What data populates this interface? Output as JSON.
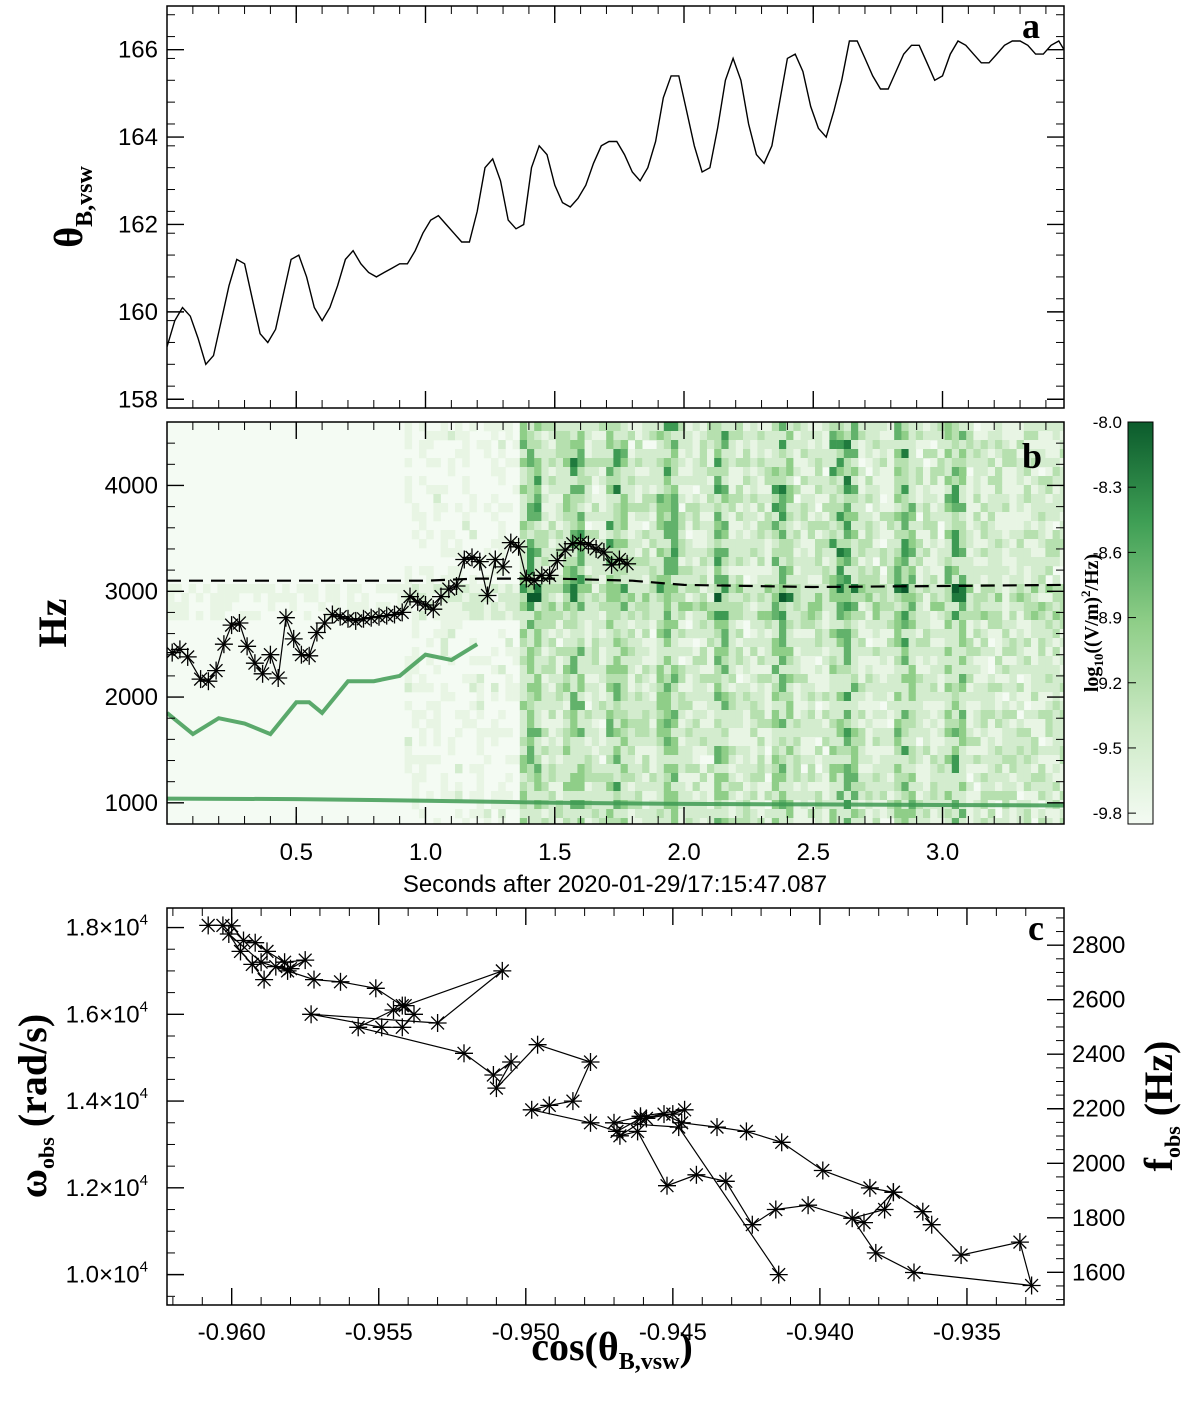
{
  "chart_data": [
    {
      "id": "a",
      "type": "line",
      "panel_label": "a",
      "ylabel": "θ",
      "ylabel_sub": "B,vsw",
      "xlim": [
        0.0,
        3.47
      ],
      "ylim": [
        157.8,
        167.0
      ],
      "yticks": [
        158,
        160,
        162,
        164,
        166
      ],
      "ytick_labels": [
        "158",
        "160",
        "162",
        "164",
        "166"
      ],
      "series": [
        {
          "name": "theta_B_vsw",
          "x": [
            0.0,
            0.03,
            0.06,
            0.09,
            0.12,
            0.15,
            0.18,
            0.21,
            0.24,
            0.27,
            0.3,
            0.33,
            0.36,
            0.39,
            0.42,
            0.45,
            0.48,
            0.51,
            0.54,
            0.57,
            0.6,
            0.63,
            0.66,
            0.69,
            0.72,
            0.75,
            0.78,
            0.81,
            0.84,
            0.87,
            0.9,
            0.93,
            0.96,
            0.99,
            1.02,
            1.05,
            1.08,
            1.11,
            1.14,
            1.17,
            1.2,
            1.23,
            1.26,
            1.29,
            1.32,
            1.35,
            1.38,
            1.41,
            1.44,
            1.47,
            1.5,
            1.53,
            1.56,
            1.59,
            1.62,
            1.65,
            1.68,
            1.71,
            1.74,
            1.77,
            1.8,
            1.83,
            1.86,
            1.89,
            1.92,
            1.95,
            1.98,
            2.01,
            2.04,
            2.07,
            2.1,
            2.13,
            2.16,
            2.19,
            2.22,
            2.25,
            2.28,
            2.31,
            2.34,
            2.37,
            2.4,
            2.43,
            2.46,
            2.49,
            2.52,
            2.55,
            2.58,
            2.61,
            2.64,
            2.67,
            2.7,
            2.73,
            2.76,
            2.79,
            2.82,
            2.85,
            2.88,
            2.91,
            2.94,
            2.97,
            3.0,
            3.03,
            3.06,
            3.09,
            3.12,
            3.15,
            3.18,
            3.21,
            3.24,
            3.27,
            3.3,
            3.33,
            3.36,
            3.39,
            3.42,
            3.45,
            3.47
          ],
          "values": [
            159.2,
            159.8,
            160.1,
            159.9,
            159.4,
            158.8,
            159.0,
            159.8,
            160.6,
            161.2,
            161.1,
            160.3,
            159.5,
            159.3,
            159.6,
            160.4,
            161.2,
            161.3,
            160.8,
            160.1,
            159.8,
            160.1,
            160.6,
            161.2,
            161.4,
            161.1,
            160.9,
            160.8,
            160.9,
            161.0,
            161.1,
            161.1,
            161.4,
            161.8,
            162.1,
            162.2,
            162.0,
            161.8,
            161.6,
            161.6,
            162.3,
            163.3,
            163.5,
            163.0,
            162.1,
            161.9,
            162.0,
            163.3,
            163.8,
            163.6,
            162.9,
            162.5,
            162.4,
            162.6,
            162.9,
            163.4,
            163.8,
            163.9,
            163.9,
            163.6,
            163.2,
            163.0,
            163.3,
            163.9,
            164.9,
            165.4,
            165.4,
            164.6,
            163.8,
            163.2,
            163.3,
            164.2,
            165.3,
            165.8,
            165.3,
            164.3,
            163.6,
            163.4,
            163.8,
            164.8,
            165.8,
            165.9,
            165.5,
            164.7,
            164.2,
            164.0,
            164.6,
            165.3,
            166.2,
            166.2,
            165.8,
            165.4,
            165.1,
            165.1,
            165.5,
            165.9,
            166.1,
            166.1,
            165.7,
            165.3,
            165.4,
            165.9,
            166.2,
            166.1,
            165.9,
            165.7,
            165.7,
            165.9,
            166.1,
            166.2,
            166.2,
            166.1,
            165.9,
            165.9,
            166.1,
            166.2,
            166.0
          ]
        }
      ]
    },
    {
      "id": "b",
      "type": "heatmap",
      "panel_label": "b",
      "ylabel": "Hz",
      "xlabel": "Seconds after 2020-01-29/17:15:47.087",
      "xlim": [
        0.0,
        3.47
      ],
      "ylim": [
        800,
        4600
      ],
      "xticks": [
        0.5,
        1.0,
        1.5,
        2.0,
        2.5,
        3.0
      ],
      "xtick_labels": [
        "0.5",
        "1.0",
        "1.5",
        "2.0",
        "2.5",
        "3.0"
      ],
      "yticks": [
        1000,
        2000,
        3000,
        4000
      ],
      "ytick_labels": [
        "1000",
        "2000",
        "3000",
        "4000"
      ],
      "colorbar": {
        "label": "log10((V/m)²/Hz)",
        "label_base": "log",
        "label_sub": "10",
        "label_rest": "((V/m)",
        "label_sup": "2",
        "label_end": "/Hz)",
        "range": [
          -9.85,
          -8.0
        ],
        "ticks": [
          -8.0,
          -8.3,
          -8.6,
          -8.9,
          -9.2,
          -9.5,
          -9.8
        ],
        "tick_labels": [
          "-8.0",
          "-8.3",
          "-8.6",
          "-8.9",
          "-9.2",
          "-9.5",
          "-9.8"
        ],
        "color_low": "#f4fbf3",
        "color_high": "#0b5b2c"
      },
      "bright_columns_s": [
        1.4,
        1.57,
        1.72,
        1.93,
        2.13,
        2.36,
        2.58,
        2.62,
        2.84,
        3.04
      ],
      "emission_bands": [
        {
          "name": "lower band",
          "x": [
            0.0,
            0.5,
            1.0,
            1.5,
            2.0,
            2.5,
            3.0,
            3.47
          ],
          "values": [
            1040,
            1035,
            1020,
            1000,
            990,
            985,
            980,
            975
          ]
        },
        {
          "name": "rising band",
          "x": [
            0.0,
            0.1,
            0.2,
            0.3,
            0.4,
            0.5,
            0.55,
            0.6,
            0.7,
            0.8,
            0.9,
            1.0,
            1.1,
            1.2
          ],
          "values": [
            1850,
            1650,
            1800,
            1750,
            1650,
            1950,
            1950,
            1850,
            2150,
            2150,
            2200,
            2400,
            2350,
            2500
          ]
        }
      ],
      "dashed_line": {
        "name": "reference frequency",
        "x": [
          0.0,
          0.5,
          1.0,
          1.2,
          1.5,
          1.8,
          2.0,
          2.5,
          3.0,
          3.47
        ],
        "values": [
          3100,
          3100,
          3100,
          3120,
          3120,
          3100,
          3060,
          3040,
          3050,
          3060
        ]
      },
      "markers": {
        "name": "peak frequency",
        "x": [
          0.02,
          0.05,
          0.08,
          0.13,
          0.16,
          0.19,
          0.22,
          0.25,
          0.28,
          0.31,
          0.34,
          0.37,
          0.4,
          0.43,
          0.46,
          0.49,
          0.52,
          0.55,
          0.58,
          0.61,
          0.64,
          0.67,
          0.7,
          0.73,
          0.76,
          0.79,
          0.82,
          0.85,
          0.88,
          0.91,
          0.94,
          0.97,
          1.0,
          1.03,
          1.06,
          1.09,
          1.12,
          1.15,
          1.18,
          1.21,
          1.24,
          1.27,
          1.3,
          1.33,
          1.36,
          1.39,
          1.42,
          1.45,
          1.48,
          1.51,
          1.54,
          1.57,
          1.6,
          1.63,
          1.66,
          1.69,
          1.72,
          1.75,
          1.78
        ],
        "values": [
          2420,
          2450,
          2380,
          2170,
          2150,
          2250,
          2500,
          2680,
          2700,
          2480,
          2320,
          2220,
          2400,
          2180,
          2750,
          2550,
          2400,
          2390,
          2610,
          2700,
          2780,
          2760,
          2740,
          2720,
          2740,
          2750,
          2760,
          2770,
          2780,
          2800,
          2950,
          2900,
          2870,
          2830,
          2950,
          3020,
          3050,
          3300,
          3320,
          3280,
          2960,
          3300,
          3230,
          3460,
          3420,
          3120,
          3100,
          3150,
          3150,
          3290,
          3390,
          3450,
          3460,
          3440,
          3400,
          3370,
          3250,
          3300,
          3260
        ]
      }
    },
    {
      "id": "c",
      "type": "scatter",
      "panel_label": "c",
      "xlabel": "cos(θ",
      "xlabel_sub": "B,vsw",
      "xlabel_end": ")",
      "ylabel": "ω",
      "ylabel_sub": "obs",
      "ylabel_end": " (rad/s)",
      "y2label": "f",
      "y2label_sub": "obs",
      "y2label_end": " (Hz)",
      "xlim": [
        -0.9622,
        -0.9317
      ],
      "ylim": [
        9300,
        18450
      ],
      "y2lim": [
        1480.1,
        2936.4
      ],
      "xticks": [
        -0.96,
        -0.955,
        -0.95,
        -0.945,
        -0.94,
        -0.935
      ],
      "xtick_labels": [
        "-0.960",
        "-0.955",
        "-0.950",
        "-0.945",
        "-0.940",
        "-0.935"
      ],
      "yticks": [
        10000,
        12000,
        14000,
        16000,
        18000
      ],
      "ytick_labels": [
        "1.0×10",
        "1.2×10",
        "1.4×10",
        "1.6×10",
        "1.8×10"
      ],
      "ytick_exponent": "4",
      "y2ticks": [
        1600,
        1800,
        2000,
        2200,
        2400,
        2600,
        2800
      ],
      "y2tick_labels": [
        "1600",
        "1800",
        "2000",
        "2200",
        "2400",
        "2600",
        "2800"
      ],
      "series": [
        {
          "name": "omega_obs vs cos(theta)",
          "x": [
            -0.9608,
            -0.9603,
            -0.96,
            -0.9596,
            -0.9592,
            -0.9588,
            -0.9582,
            -0.9575,
            -0.958,
            -0.9585,
            -0.9589,
            -0.9593,
            -0.9597,
            -0.9601,
            -0.959,
            -0.9581,
            -0.9572,
            -0.9563,
            -0.9551,
            -0.9542,
            -0.9538,
            -0.9542,
            -0.9549,
            -0.9573,
            -0.953,
            -0.9508,
            -0.9541,
            -0.9545,
            -0.9557,
            -0.9521,
            -0.9511,
            -0.9505,
            -0.951,
            -0.9496,
            -0.9478,
            -0.9484,
            -0.9492,
            -0.9498,
            -0.9478,
            -0.9469,
            -0.9461,
            -0.9453,
            -0.9447,
            -0.9435,
            -0.9425,
            -0.9413,
            -0.9399,
            -0.9383,
            -0.9375,
            -0.9365,
            -0.9362,
            -0.9352,
            -0.9332,
            -0.9328,
            -0.9368,
            -0.9381,
            -0.9389,
            -0.9378,
            -0.9375,
            -0.9385,
            -0.9404,
            -0.9415,
            -0.9423,
            -0.9432,
            -0.9442,
            -0.9452,
            -0.9462,
            -0.9468,
            -0.9459,
            -0.945,
            -0.9446,
            -0.9461,
            -0.947,
            -0.9448,
            -0.9414
          ],
          "values": [
            18050,
            18050,
            18040,
            17700,
            17650,
            17450,
            17200,
            17250,
            17050,
            17100,
            16800,
            17150,
            17450,
            17850,
            17200,
            17000,
            16800,
            16750,
            16600,
            16200,
            16000,
            15700,
            15700,
            16000,
            15800,
            17000,
            16200,
            16100,
            15700,
            15100,
            14600,
            14900,
            14300,
            15300,
            14900,
            14000,
            13900,
            13800,
            13500,
            13300,
            13600,
            13700,
            13500,
            13400,
            13300,
            13050,
            12400,
            12000,
            11900,
            11450,
            11150,
            10450,
            10750,
            9750,
            10050,
            10500,
            11300,
            11500,
            11900,
            11200,
            11600,
            11500,
            11150,
            12150,
            12300,
            12050,
            13300,
            13200,
            13600,
            13700,
            13800,
            13650,
            13500,
            13400,
            10000
          ]
        }
      ]
    }
  ]
}
